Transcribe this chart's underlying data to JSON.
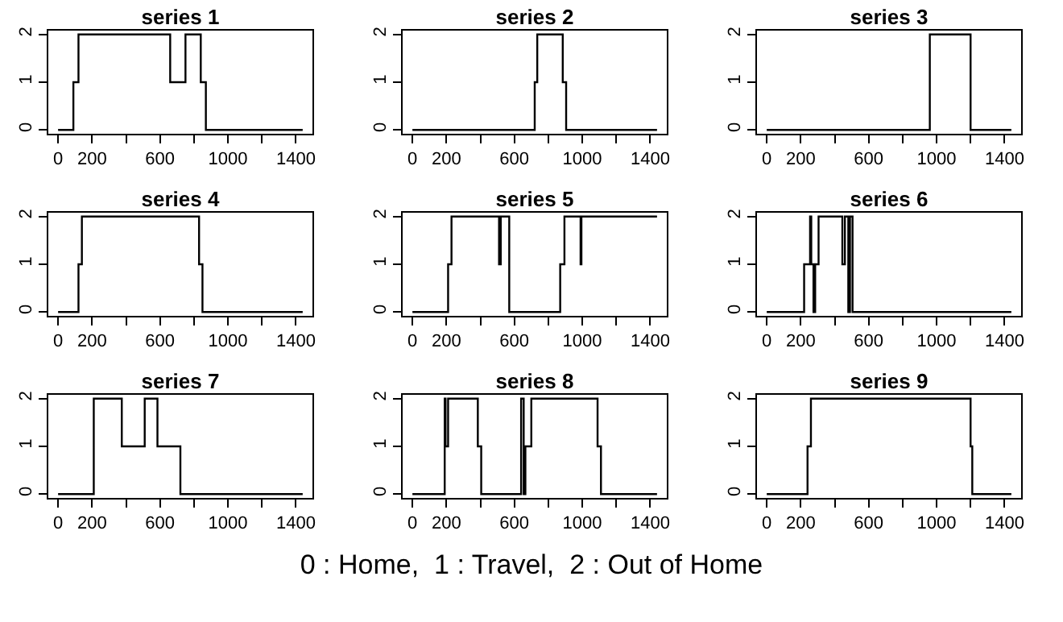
{
  "chart_data": [
    {
      "type": "step",
      "title": "series 1",
      "x": [
        0,
        90,
        120,
        660,
        750,
        840,
        870,
        1440
      ],
      "values": [
        0,
        1,
        2,
        1,
        2,
        1,
        0,
        0
      ],
      "color": "#000000",
      "xlim": [
        -57.6,
        1497.6
      ],
      "xticks": [
        0,
        200,
        {
          "value": 400,
          "label": null
        },
        600,
        {
          "value": 800,
          "label": null
        },
        1000,
        {
          "value": 1200,
          "label": null
        },
        1400
      ],
      "ylim": [
        -0.08,
        2.08
      ],
      "yticks": [
        0,
        1,
        2
      ]
    },
    {
      "type": "step",
      "title": "series 2",
      "x": [
        0,
        720,
        735,
        885,
        905,
        1440
      ],
      "values": [
        0,
        1,
        2,
        1,
        0,
        0
      ],
      "color": "#000000",
      "xlim": [
        -57.6,
        1497.6
      ],
      "xticks": [
        0,
        200,
        {
          "value": 400,
          "label": null
        },
        600,
        {
          "value": 800,
          "label": null
        },
        1000,
        {
          "value": 1200,
          "label": null
        },
        1400
      ],
      "ylim": [
        -0.08,
        2.08
      ],
      "yticks": [
        0,
        1,
        2
      ]
    },
    {
      "type": "step",
      "title": "series 3",
      "x": [
        0,
        960,
        1200,
        1440
      ],
      "values": [
        0,
        2,
        0,
        0
      ],
      "color": "#000000",
      "xlim": [
        -57.6,
        1497.6
      ],
      "xticks": [
        0,
        200,
        {
          "value": 400,
          "label": null
        },
        600,
        {
          "value": 800,
          "label": null
        },
        1000,
        {
          "value": 1200,
          "label": null
        },
        1400
      ],
      "ylim": [
        -0.08,
        2.08
      ],
      "yticks": [
        0,
        1,
        2
      ]
    },
    {
      "type": "step",
      "title": "series 4",
      "x": [
        0,
        120,
        140,
        830,
        850,
        1440
      ],
      "values": [
        0,
        1,
        2,
        1,
        0,
        0
      ],
      "color": "#000000",
      "xlim": [
        -57.6,
        1497.6
      ],
      "xticks": [
        0,
        200,
        {
          "value": 400,
          "label": null
        },
        600,
        {
          "value": 800,
          "label": null
        },
        1000,
        {
          "value": 1200,
          "label": null
        },
        1400
      ],
      "ylim": [
        -0.08,
        2.08
      ],
      "yticks": [
        0,
        1,
        2
      ]
    },
    {
      "type": "step",
      "title": "series 5",
      "x": [
        0,
        210,
        230,
        510,
        520,
        570,
        870,
        895,
        990,
        995,
        1440
      ],
      "values": [
        0,
        1,
        2,
        1,
        2,
        0,
        1,
        2,
        1,
        2,
        2
      ],
      "color": "#000000",
      "xlim": [
        -57.6,
        1497.6
      ],
      "xticks": [
        0,
        200,
        {
          "value": 400,
          "label": null
        },
        600,
        {
          "value": 800,
          "label": null
        },
        1000,
        {
          "value": 1200,
          "label": null
        },
        1400
      ],
      "ylim": [
        -0.08,
        2.08
      ],
      "yticks": [
        0,
        1,
        2
      ]
    },
    {
      "type": "step",
      "title": "series 6",
      "x": [
        0,
        220,
        255,
        262,
        275,
        285,
        305,
        445,
        460,
        480,
        490,
        505,
        1440
      ],
      "values": [
        0,
        1,
        2,
        1,
        0,
        1,
        2,
        1,
        2,
        0,
        2,
        0,
        0
      ],
      "color": "#000000",
      "xlim": [
        -57.6,
        1497.6
      ],
      "xticks": [
        0,
        200,
        {
          "value": 400,
          "label": null
        },
        600,
        {
          "value": 800,
          "label": null
        },
        1000,
        {
          "value": 1200,
          "label": null
        },
        1400
      ],
      "ylim": [
        -0.08,
        2.08
      ],
      "yticks": [
        0,
        1,
        2
      ]
    },
    {
      "type": "step",
      "title": "series 7",
      "x": [
        0,
        210,
        375,
        510,
        585,
        720,
        1440
      ],
      "values": [
        0,
        2,
        1,
        2,
        1,
        0,
        0
      ],
      "color": "#000000",
      "xlim": [
        -57.6,
        1497.6
      ],
      "xticks": [
        0,
        200,
        {
          "value": 400,
          "label": null
        },
        600,
        {
          "value": 800,
          "label": null
        },
        1000,
        {
          "value": 1200,
          "label": null
        },
        1400
      ],
      "ylim": [
        -0.08,
        2.08
      ],
      "yticks": [
        0,
        1,
        2
      ]
    },
    {
      "type": "step",
      "title": "series 8",
      "x": [
        0,
        190,
        195,
        210,
        385,
        405,
        640,
        655,
        665,
        700,
        1090,
        1110,
        1440
      ],
      "values": [
        0,
        2,
        1,
        2,
        1,
        0,
        2,
        0,
        1,
        2,
        1,
        0,
        0
      ],
      "color": "#000000",
      "xlim": [
        -57.6,
        1497.6
      ],
      "xticks": [
        0,
        200,
        {
          "value": 400,
          "label": null
        },
        600,
        {
          "value": 800,
          "label": null
        },
        1000,
        {
          "value": 1200,
          "label": null
        },
        1400
      ],
      "ylim": [
        -0.08,
        2.08
      ],
      "yticks": [
        0,
        1,
        2
      ],
      "annotations": [
        "0 : Home,  1 : Travel,  2 : Out of Home"
      ]
    },
    {
      "type": "step",
      "title": "series 9",
      "x": [
        0,
        240,
        260,
        1200,
        1210,
        1440
      ],
      "values": [
        0,
        1,
        2,
        1,
        0,
        0
      ],
      "color": "#000000",
      "xlim": [
        -57.6,
        1497.6
      ],
      "xticks": [
        0,
        200,
        {
          "value": 400,
          "label": null
        },
        600,
        {
          "value": 800,
          "label": null
        },
        1000,
        {
          "value": 1200,
          "label": null
        },
        1400
      ],
      "ylim": [
        -0.08,
        2.08
      ],
      "yticks": [
        0,
        1,
        2
      ]
    }
  ]
}
